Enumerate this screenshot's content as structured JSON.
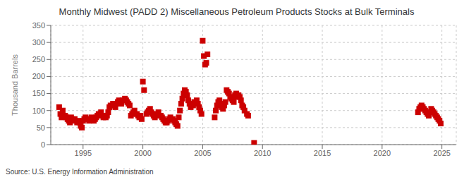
{
  "chart_data": {
    "type": "scatter",
    "title": "Monthly Midwest (PADD 2) Miscellaneous Petroleum Products Stocks at Bulk Terminals",
    "ylabel": "Thousand Barrels",
    "source": "Source: U.S. Energy Information Administration",
    "color": "#cc0000",
    "marker": "square",
    "grid": true,
    "xlim": [
      1992.3,
      2026.2
    ],
    "xticks": [
      1995,
      2000,
      2005,
      2010,
      2015,
      2020,
      2025
    ],
    "ylim": [
      0,
      350
    ],
    "yticks": [
      0,
      50,
      100,
      150,
      200,
      250,
      300,
      350
    ],
    "x": [
      1993.0,
      1993.1,
      1993.2,
      1993.3,
      1993.5,
      1993.6,
      1993.7,
      1993.8,
      1993.9,
      1994.0,
      1994.1,
      1994.2,
      1994.3,
      1994.5,
      1994.6,
      1994.7,
      1994.8,
      1994.9,
      1995.0,
      1995.1,
      1995.2,
      1995.3,
      1995.5,
      1995.6,
      1995.7,
      1995.8,
      1995.9,
      1996.0,
      1996.1,
      1996.2,
      1996.3,
      1996.5,
      1996.6,
      1996.7,
      1996.8,
      1996.9,
      1997.0,
      1997.1,
      1997.2,
      1997.3,
      1997.5,
      1997.6,
      1997.7,
      1997.8,
      1997.9,
      1998.0,
      1998.1,
      1998.2,
      1998.3,
      1998.5,
      1998.6,
      1998.7,
      1998.8,
      1998.9,
      1999.0,
      1999.1,
      1999.2,
      1999.3,
      1999.5,
      1999.6,
      1999.7,
      1999.8,
      1999.9,
      2000.0,
      2000.1,
      2000.3,
      2000.4,
      2000.5,
      2000.6,
      2000.7,
      2000.8,
      2000.9,
      2001.0,
      2001.1,
      2001.2,
      2001.3,
      2001.5,
      2001.6,
      2001.7,
      2001.8,
      2001.9,
      2002.0,
      2002.1,
      2002.2,
      2002.3,
      2002.5,
      2002.6,
      2002.7,
      2002.8,
      2002.9,
      2003.0,
      2003.1,
      2003.2,
      2003.3,
      2003.4,
      2003.5,
      2003.6,
      2003.7,
      2003.8,
      2003.9,
      2004.0,
      2004.1,
      2004.2,
      2004.3,
      2004.5,
      2004.6,
      2004.7,
      2004.8,
      2004.9,
      2005.0,
      2005.1,
      2005.2,
      2005.3,
      2005.4,
      2006.0,
      2006.1,
      2006.2,
      2006.3,
      2006.4,
      2006.5,
      2006.6,
      2006.7,
      2006.8,
      2006.9,
      2007.0,
      2007.1,
      2007.2,
      2007.3,
      2007.4,
      2007.5,
      2007.6,
      2007.7,
      2007.8,
      2007.9,
      2008.0,
      2008.1,
      2008.2,
      2008.3,
      2008.4,
      2008.5,
      2008.7,
      2008.8,
      2009.3,
      2023.0,
      2023.1,
      2023.2,
      2023.3,
      2023.4,
      2023.5,
      2023.6,
      2023.7,
      2023.8,
      2023.9,
      2024.0,
      2024.1,
      2024.2,
      2024.3,
      2024.4,
      2024.5,
      2024.6,
      2024.7,
      2024.8,
      2024.9
    ],
    "values": [
      110,
      90,
      80,
      100,
      85,
      80,
      75,
      70,
      65,
      80,
      75,
      70,
      75,
      65,
      70,
      65,
      55,
      50,
      70,
      75,
      80,
      75,
      70,
      75,
      80,
      75,
      70,
      75,
      80,
      85,
      90,
      95,
      85,
      80,
      85,
      80,
      85,
      95,
      110,
      115,
      120,
      115,
      110,
      120,
      125,
      130,
      125,
      120,
      130,
      135,
      130,
      125,
      120,
      115,
      85,
      90,
      95,
      100,
      90,
      85,
      80,
      85,
      75,
      185,
      160,
      90,
      95,
      100,
      105,
      95,
      90,
      85,
      80,
      85,
      90,
      95,
      85,
      80,
      75,
      70,
      65,
      65,
      70,
      75,
      80,
      75,
      70,
      65,
      60,
      55,
      80,
      100,
      120,
      135,
      150,
      160,
      155,
      145,
      130,
      120,
      110,
      120,
      115,
      125,
      130,
      120,
      110,
      100,
      90,
      305,
      260,
      235,
      240,
      265,
      80,
      100,
      115,
      125,
      130,
      120,
      110,
      105,
      115,
      125,
      160,
      155,
      150,
      140,
      135,
      130,
      125,
      145,
      150,
      140,
      145,
      140,
      130,
      115,
      110,
      100,
      90,
      85,
      5,
      95,
      105,
      110,
      115,
      110,
      105,
      100,
      95,
      90,
      85,
      95,
      105,
      100,
      95,
      90,
      85,
      80,
      75,
      70,
      62
    ]
  }
}
